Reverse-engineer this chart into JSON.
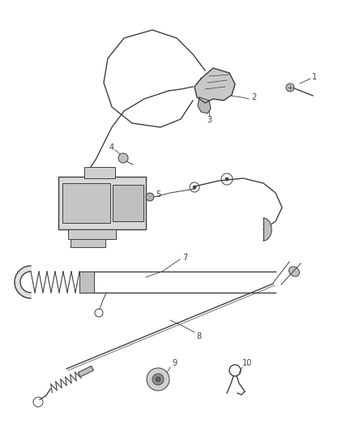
{
  "background_color": "#ffffff",
  "line_color": "#404040",
  "label_color": "#303030",
  "fig_width": 4.38,
  "fig_height": 5.33,
  "dpi": 100
}
